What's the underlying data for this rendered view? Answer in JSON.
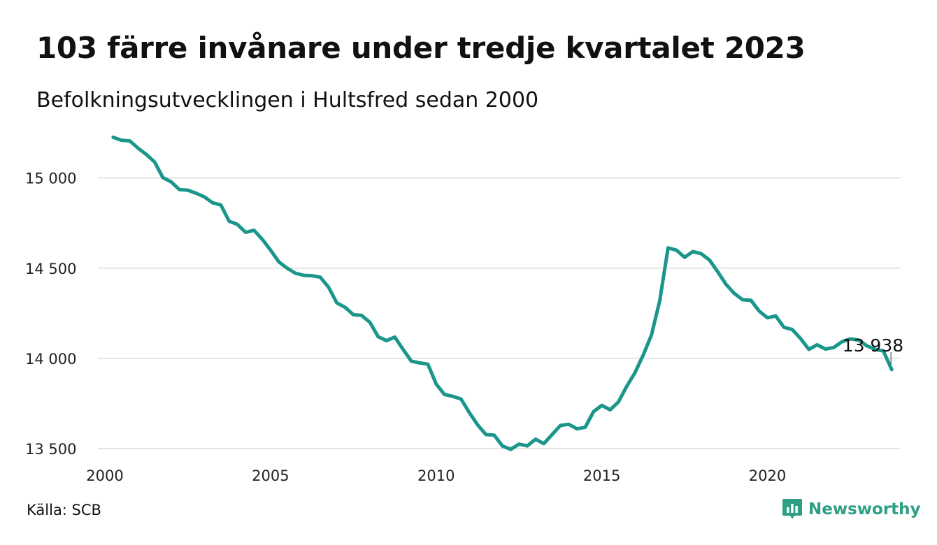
{
  "header": {
    "title": "103 färre invånare under tredje kvartalet 2023",
    "subtitle": "Befolkningsutvecklingen i Hultsfred sedan 2000"
  },
  "footer": {
    "source": "Källa: SCB",
    "brand": "Newsworthy",
    "brand_color": "#2e9e85"
  },
  "chart_data": {
    "type": "line",
    "title": "103 färre invånare under tredje kvartalet 2023",
    "subtitle": "Befolkningsutvecklingen i Hultsfred sedan 2000",
    "xlabel": "",
    "ylabel": "",
    "xlim": [
      2000,
      2024
    ],
    "ylim": [
      13450,
      15250
    ],
    "x_ticks": [
      2000,
      2005,
      2010,
      2015,
      2020
    ],
    "x_tick_labels": [
      "2000",
      "2005",
      "2010",
      "2015",
      "2020"
    ],
    "y_ticks": [
      13500,
      14000,
      14500,
      15000
    ],
    "y_tick_labels": [
      "13 500",
      "14 000",
      "14 500",
      "15 000"
    ],
    "grid": "horizontal",
    "line_color": "#1a968a",
    "series": [
      {
        "values": [
          {
            "x": 2000.25,
            "y": 15225
          },
          {
            "x": 2000.5,
            "y": 15208
          },
          {
            "x": 2000.75,
            "y": 15205
          },
          {
            "x": 2001.0,
            "y": 15165
          },
          {
            "x": 2001.25,
            "y": 15130
          },
          {
            "x": 2001.5,
            "y": 15088
          },
          {
            "x": 2001.75,
            "y": 15002
          },
          {
            "x": 2002.0,
            "y": 14978
          },
          {
            "x": 2002.25,
            "y": 14935
          },
          {
            "x": 2002.5,
            "y": 14932
          },
          {
            "x": 2002.75,
            "y": 14915
          },
          {
            "x": 2003.0,
            "y": 14895
          },
          {
            "x": 2003.25,
            "y": 14862
          },
          {
            "x": 2003.5,
            "y": 14850
          },
          {
            "x": 2003.75,
            "y": 14760
          },
          {
            "x": 2004.0,
            "y": 14742
          },
          {
            "x": 2004.25,
            "y": 14698
          },
          {
            "x": 2004.5,
            "y": 14710
          },
          {
            "x": 2004.75,
            "y": 14660
          },
          {
            "x": 2005.0,
            "y": 14600
          },
          {
            "x": 2005.25,
            "y": 14535
          },
          {
            "x": 2005.5,
            "y": 14500
          },
          {
            "x": 2005.75,
            "y": 14472
          },
          {
            "x": 2006.0,
            "y": 14460
          },
          {
            "x": 2006.25,
            "y": 14458
          },
          {
            "x": 2006.5,
            "y": 14450
          },
          {
            "x": 2006.75,
            "y": 14395
          },
          {
            "x": 2007.0,
            "y": 14308
          },
          {
            "x": 2007.25,
            "y": 14283
          },
          {
            "x": 2007.5,
            "y": 14242
          },
          {
            "x": 2007.75,
            "y": 14238
          },
          {
            "x": 2008.0,
            "y": 14200
          },
          {
            "x": 2008.25,
            "y": 14120
          },
          {
            "x": 2008.5,
            "y": 14098
          },
          {
            "x": 2008.75,
            "y": 14118
          },
          {
            "x": 2009.0,
            "y": 14050
          },
          {
            "x": 2009.25,
            "y": 13985
          },
          {
            "x": 2009.5,
            "y": 13975
          },
          {
            "x": 2009.75,
            "y": 13968
          },
          {
            "x": 2010.0,
            "y": 13858
          },
          {
            "x": 2010.25,
            "y": 13800
          },
          {
            "x": 2010.5,
            "y": 13790
          },
          {
            "x": 2010.75,
            "y": 13775
          },
          {
            "x": 2011.0,
            "y": 13700
          },
          {
            "x": 2011.25,
            "y": 13632
          },
          {
            "x": 2011.5,
            "y": 13578
          },
          {
            "x": 2011.75,
            "y": 13575
          },
          {
            "x": 2012.0,
            "y": 13515
          },
          {
            "x": 2012.25,
            "y": 13496
          },
          {
            "x": 2012.5,
            "y": 13525
          },
          {
            "x": 2012.75,
            "y": 13515
          },
          {
            "x": 2013.0,
            "y": 13552
          },
          {
            "x": 2013.25,
            "y": 13528
          },
          {
            "x": 2013.5,
            "y": 13578
          },
          {
            "x": 2013.75,
            "y": 13628
          },
          {
            "x": 2014.0,
            "y": 13635
          },
          {
            "x": 2014.25,
            "y": 13610
          },
          {
            "x": 2014.5,
            "y": 13618
          },
          {
            "x": 2014.75,
            "y": 13705
          },
          {
            "x": 2015.0,
            "y": 13740
          },
          {
            "x": 2015.25,
            "y": 13715
          },
          {
            "x": 2015.5,
            "y": 13758
          },
          {
            "x": 2015.75,
            "y": 13845
          },
          {
            "x": 2016.0,
            "y": 13920
          },
          {
            "x": 2016.25,
            "y": 14018
          },
          {
            "x": 2016.5,
            "y": 14130
          },
          {
            "x": 2016.75,
            "y": 14320
          },
          {
            "x": 2017.0,
            "y": 14612
          },
          {
            "x": 2017.25,
            "y": 14600
          },
          {
            "x": 2017.5,
            "y": 14560
          },
          {
            "x": 2017.75,
            "y": 14592
          },
          {
            "x": 2018.0,
            "y": 14580
          },
          {
            "x": 2018.25,
            "y": 14545
          },
          {
            "x": 2018.5,
            "y": 14480
          },
          {
            "x": 2018.75,
            "y": 14410
          },
          {
            "x": 2019.0,
            "y": 14360
          },
          {
            "x": 2019.25,
            "y": 14325
          },
          {
            "x": 2019.5,
            "y": 14322
          },
          {
            "x": 2019.75,
            "y": 14262
          },
          {
            "x": 2020.0,
            "y": 14225
          },
          {
            "x": 2020.25,
            "y": 14235
          },
          {
            "x": 2020.5,
            "y": 14172
          },
          {
            "x": 2020.75,
            "y": 14160
          },
          {
            "x": 2021.0,
            "y": 14110
          },
          {
            "x": 2021.25,
            "y": 14050
          },
          {
            "x": 2021.5,
            "y": 14075
          },
          {
            "x": 2021.75,
            "y": 14052
          },
          {
            "x": 2022.0,
            "y": 14060
          },
          {
            "x": 2022.25,
            "y": 14092
          },
          {
            "x": 2022.5,
            "y": 14108
          },
          {
            "x": 2022.75,
            "y": 14102
          },
          {
            "x": 2023.0,
            "y": 14070
          },
          {
            "x": 2023.25,
            "y": 14050
          },
          {
            "x": 2023.5,
            "y": 14041
          },
          {
            "x": 2023.75,
            "y": 13938
          }
        ]
      }
    ],
    "annotations": [
      {
        "label": "13 938",
        "x": 2023.75,
        "y": 13938
      }
    ]
  }
}
